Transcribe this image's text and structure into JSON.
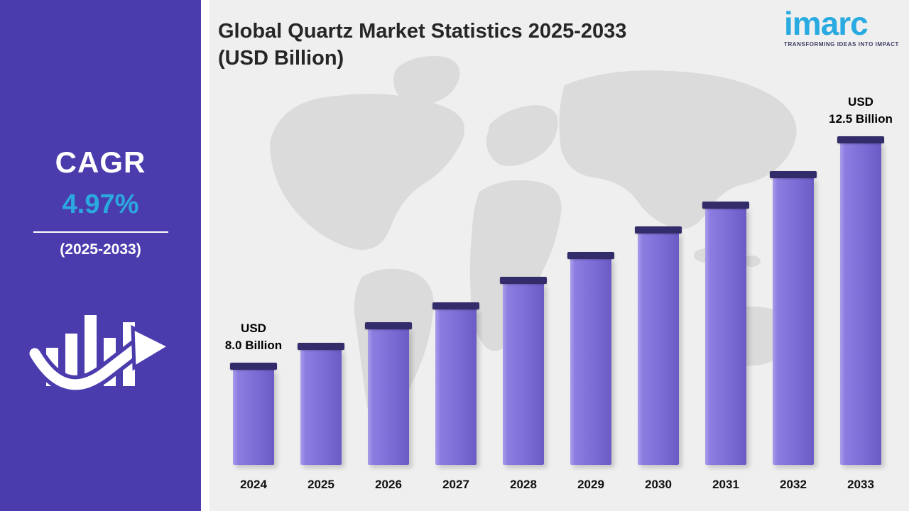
{
  "sidebar": {
    "cagr_label": "CAGR",
    "cagr_value": "4.97%",
    "cagr_period": "(2025-2033)"
  },
  "header": {
    "title_line1": "Global Quartz Market Statistics 2025-2033",
    "title_line2": "(USD Billion)"
  },
  "logo": {
    "brand": "imarc",
    "tagline": "TRANSFORMING IDEAS INTO IMPACT"
  },
  "chart_data": {
    "type": "bar",
    "title": "Global Quartz Market Statistics 2025-2033 (USD Billion)",
    "unit": "USD Billion",
    "cagr": "4.97%",
    "cagr_period": "2025-2033",
    "categories": [
      "2024",
      "2025",
      "2026",
      "2027",
      "2028",
      "2029",
      "2030",
      "2031",
      "2032",
      "2033"
    ],
    "values": [
      8.0,
      8.4,
      8.8,
      9.2,
      9.7,
      10.2,
      10.7,
      11.2,
      11.8,
      12.5
    ],
    "annotations": [
      {
        "index": 0,
        "lines": [
          "USD",
          "8.0 Billion"
        ]
      },
      {
        "index": 9,
        "lines": [
          "USD",
          "12.5 Billion"
        ]
      }
    ],
    "xlabel": "",
    "ylabel": "",
    "legend_visible": false,
    "y_axis_visible": false,
    "grid": false
  },
  "colors": {
    "sidebar_bg": "#4b3cae",
    "accent_blue": "#2aa9e0",
    "logo_blue": "#29aae1",
    "bar_face": "#7b6cd5",
    "bar_cap": "#332c6b",
    "chart_bg": "#efefef",
    "map_fill": "#dbdbdb"
  }
}
